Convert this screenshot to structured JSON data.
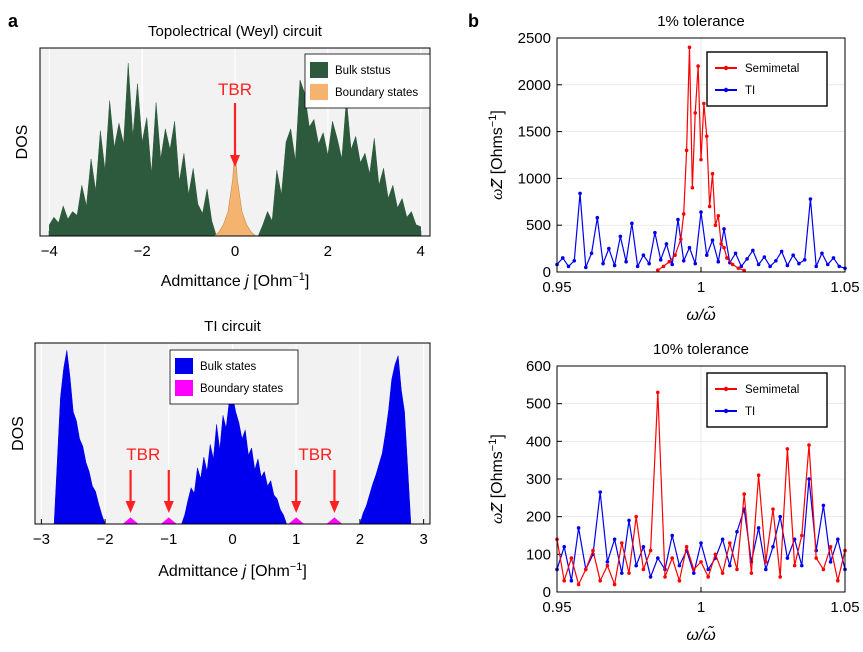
{
  "panel_labels": {
    "a": "a",
    "b": "b"
  },
  "arrow_color": "#ff2020",
  "chart_data": [
    {
      "type": "area",
      "title": "Topolectrical (Weyl) circuit",
      "xlabel_main": "Admittance ",
      "xlabel_var": "j",
      "xlabel_unit_open": " [Ohm",
      "xlabel_unit_exp": "−1",
      "xlabel_unit_close": "]",
      "ylabel": "DOS",
      "xlim": [
        -4.2,
        4.2
      ],
      "ylim": [
        0,
        1
      ],
      "x_ticks": [
        -4,
        -2,
        0,
        2,
        4
      ],
      "x_tick_labels": [
        "−4",
        "−2",
        "0",
        "2",
        "4"
      ],
      "grid": true,
      "legend_position": "top-right",
      "series": [
        {
          "name": "Bulk ststus",
          "color": "#2d5a3d",
          "x": [
            -4.0,
            -3.9,
            -3.8,
            -3.7,
            -3.6,
            -3.5,
            -3.4,
            -3.3,
            -3.2,
            -3.1,
            -3.0,
            -2.9,
            -2.8,
            -2.7,
            -2.6,
            -2.5,
            -2.4,
            -2.3,
            -2.2,
            -2.1,
            -2.0,
            -1.9,
            -1.8,
            -1.7,
            -1.6,
            -1.5,
            -1.4,
            -1.3,
            -1.2,
            -1.1,
            -1.0,
            -0.9,
            -0.8,
            -0.7,
            -0.6,
            -0.5,
            -0.4,
            -0.3,
            -0.2,
            -0.1,
            0.0,
            0.1,
            0.2,
            0.3,
            0.4,
            0.5,
            0.6,
            0.7,
            0.8,
            0.9,
            1.0,
            1.1,
            1.2,
            1.3,
            1.4,
            1.5,
            1.6,
            1.7,
            1.8,
            1.9,
            2.0,
            2.1,
            2.2,
            2.3,
            2.4,
            2.5,
            2.6,
            2.7,
            2.8,
            2.9,
            3.0,
            3.1,
            3.2,
            3.3,
            3.4,
            3.5,
            3.6,
            3.7,
            3.8,
            3.9,
            4.0
          ],
          "values": [
            0.06,
            0.1,
            0.07,
            0.16,
            0.09,
            0.13,
            0.11,
            0.27,
            0.16,
            0.41,
            0.24,
            0.56,
            0.35,
            0.72,
            0.47,
            0.6,
            0.49,
            0.92,
            0.53,
            0.81,
            0.5,
            0.63,
            0.33,
            0.71,
            0.41,
            0.57,
            0.46,
            0.61,
            0.29,
            0.44,
            0.22,
            0.36,
            0.17,
            0.12,
            0.25,
            0.08,
            0.0,
            0.0,
            0.0,
            0.0,
            0.0,
            0.0,
            0.0,
            0.0,
            0.0,
            0.0,
            0.06,
            0.13,
            0.08,
            0.35,
            0.22,
            0.5,
            0.57,
            0.4,
            0.83,
            0.76,
            0.58,
            0.62,
            0.49,
            0.55,
            0.43,
            0.61,
            0.52,
            0.41,
            0.73,
            0.46,
            0.53,
            0.39,
            0.44,
            0.33,
            0.52,
            0.27,
            0.36,
            0.2,
            0.27,
            0.15,
            0.2,
            0.1,
            0.13,
            0.06,
            0.05
          ]
        },
        {
          "name": "Boundary states",
          "color": "#f4b470",
          "x": [
            -0.45,
            -0.35,
            -0.25,
            -0.15,
            -0.05,
            0.0,
            0.05,
            0.15,
            0.25,
            0.35,
            0.45
          ],
          "values": [
            0.0,
            0.02,
            0.06,
            0.13,
            0.3,
            0.47,
            0.3,
            0.13,
            0.06,
            0.02,
            0.0
          ]
        }
      ],
      "annotations": [
        {
          "text": "TBR",
          "x": 0.0
        }
      ]
    },
    {
      "type": "area",
      "title": "TI circuit",
      "xlabel_main": "Admittance ",
      "xlabel_var": "j",
      "xlabel_unit_open": " [Ohm",
      "xlabel_unit_exp": "−1",
      "xlabel_unit_close": "]",
      "ylabel": "DOS",
      "xlim": [
        -3.1,
        3.1
      ],
      "ylim": [
        0,
        1
      ],
      "x_ticks": [
        -3,
        -2,
        -1,
        0,
        1,
        2,
        3
      ],
      "x_tick_labels": [
        "−3",
        "−2",
        "−1",
        "0",
        "1",
        "2",
        "3"
      ],
      "grid": true,
      "legend_position": "top-left",
      "series": [
        {
          "name": "Bulk states",
          "color": "#0000ee",
          "x": [
            -2.8,
            -2.75,
            -2.7,
            -2.65,
            -2.6,
            -2.55,
            -2.5,
            -2.45,
            -2.4,
            -2.35,
            -2.3,
            -2.25,
            -2.2,
            -2.15,
            -2.1,
            -2.05,
            -2.0,
            -1.95,
            -1.9,
            -1.85,
            -1.8,
            -1.75,
            -1.7,
            -1.65,
            -1.6,
            -1.55,
            -1.5,
            -1.45,
            -1.4,
            -1.35,
            -1.3,
            -1.25,
            -1.2,
            -1.15,
            -1.1,
            -1.05,
            -1.0,
            -0.95,
            -0.9,
            -0.85,
            -0.8,
            -0.75,
            -0.7,
            -0.65,
            -0.6,
            -0.55,
            -0.5,
            -0.45,
            -0.4,
            -0.35,
            -0.3,
            -0.25,
            -0.2,
            -0.15,
            -0.1,
            -0.05,
            0.0,
            0.05,
            0.1,
            0.15,
            0.2,
            0.25,
            0.3,
            0.35,
            0.4,
            0.45,
            0.5,
            0.55,
            0.6,
            0.65,
            0.7,
            0.75,
            0.8,
            0.85,
            0.9,
            0.95,
            1.0,
            1.05,
            1.1,
            1.15,
            1.2,
            1.25,
            1.3,
            1.35,
            1.4,
            1.45,
            1.5,
            1.55,
            1.6,
            1.65,
            1.7,
            1.75,
            1.8,
            1.85,
            1.9,
            1.95,
            2.0,
            2.05,
            2.1,
            2.15,
            2.2,
            2.25,
            2.3,
            2.35,
            2.4,
            2.45,
            2.5,
            2.55,
            2.6,
            2.65,
            2.7,
            2.75,
            2.8
          ],
          "values": [
            0.0,
            0.35,
            0.7,
            0.86,
            0.96,
            0.81,
            0.62,
            0.57,
            0.47,
            0.43,
            0.34,
            0.29,
            0.21,
            0.18,
            0.11,
            0.05,
            0.0,
            0.0,
            0.0,
            0.0,
            0.0,
            0.0,
            0.0,
            0.0,
            0.0,
            0.0,
            0.0,
            0.0,
            0.0,
            0.0,
            0.0,
            0.0,
            0.0,
            0.0,
            0.0,
            0.0,
            0.0,
            0.0,
            0.0,
            0.0,
            0.0,
            0.05,
            0.13,
            0.2,
            0.17,
            0.31,
            0.25,
            0.37,
            0.29,
            0.44,
            0.36,
            0.55,
            0.41,
            0.6,
            0.53,
            0.68,
            0.71,
            0.62,
            0.56,
            0.47,
            0.52,
            0.38,
            0.42,
            0.3,
            0.36,
            0.26,
            0.29,
            0.21,
            0.24,
            0.16,
            0.14,
            0.08,
            0.05,
            0.0,
            0.0,
            0.0,
            0.0,
            0.0,
            0.0,
            0.0,
            0.0,
            0.0,
            0.0,
            0.0,
            0.0,
            0.0,
            0.0,
            0.0,
            0.0,
            0.0,
            0.0,
            0.0,
            0.0,
            0.0,
            0.0,
            0.0,
            0.0,
            0.06,
            0.1,
            0.16,
            0.22,
            0.27,
            0.33,
            0.39,
            0.5,
            0.63,
            0.8,
            0.88,
            0.93,
            0.74,
            0.62,
            0.31,
            0.0
          ]
        },
        {
          "name": "Boundary states",
          "color": "#ff00ff",
          "peaks_x": [
            -1.6,
            -1.0,
            1.0,
            1.6
          ],
          "peak_height": 0.035,
          "peak_halfwidth": 0.12
        }
      ],
      "annotations": [
        {
          "text": "TBR",
          "x": -1.6,
          "arrow": true
        },
        {
          "text": "",
          "x": -1.0,
          "arrow": true
        },
        {
          "text": "TBR",
          "x": 1.0,
          "arrow": true
        },
        {
          "text": "",
          "x": 1.6,
          "arrow": true
        }
      ],
      "annotation_label_positions": [
        -1.4,
        1.3
      ]
    },
    {
      "type": "line",
      "title": "1% tolerance",
      "xlabel": "ω/ω̃",
      "ylabel_tilde": "ω̃",
      "ylabel_var": "Z",
      "ylabel_unit_open": " [Ohms",
      "ylabel_unit_exp": "−1",
      "ylabel_unit_close": "]",
      "xlim": [
        0.95,
        1.05
      ],
      "ylim": [
        0,
        2500
      ],
      "x_ticks": [
        0.95,
        1.0,
        1.05
      ],
      "x_tick_labels": [
        "0.95",
        "1",
        "1.05"
      ],
      "y_ticks": [
        0,
        500,
        1000,
        1500,
        2000,
        2500
      ],
      "y_tick_labels": [
        "0",
        "500",
        "1000",
        "1500",
        "2000",
        "2500"
      ],
      "grid": true,
      "legend_position": "top-right",
      "series": [
        {
          "name": "Semimetal",
          "color": "#ff0000",
          "x": [
            0.985,
            0.987,
            0.989,
            0.991,
            0.993,
            0.994,
            0.995,
            0.996,
            0.997,
            0.998,
            0.999,
            1.0,
            1.001,
            1.002,
            1.003,
            1.004,
            1.005,
            1.006,
            1.007,
            1.008,
            1.009,
            1.011,
            1.013,
            1.015
          ],
          "values": [
            20,
            60,
            110,
            180,
            350,
            620,
            1300,
            2400,
            900,
            1700,
            2200,
            1200,
            1800,
            1450,
            700,
            1050,
            500,
            600,
            300,
            260,
            150,
            80,
            40,
            15
          ]
        },
        {
          "name": "TI",
          "color": "#0000ee",
          "x": [
            0.95,
            0.952,
            0.954,
            0.956,
            0.958,
            0.96,
            0.962,
            0.964,
            0.966,
            0.968,
            0.97,
            0.972,
            0.974,
            0.976,
            0.978,
            0.98,
            0.982,
            0.984,
            0.986,
            0.988,
            0.99,
            0.992,
            0.994,
            0.996,
            0.998,
            1.0,
            1.002,
            1.004,
            1.006,
            1.008,
            1.01,
            1.012,
            1.014,
            1.016,
            1.018,
            1.02,
            1.022,
            1.024,
            1.026,
            1.028,
            1.03,
            1.032,
            1.034,
            1.036,
            1.038,
            1.04,
            1.042,
            1.044,
            1.046,
            1.048,
            1.05
          ],
          "values": [
            80,
            150,
            60,
            120,
            840,
            50,
            200,
            580,
            90,
            250,
            70,
            380,
            110,
            520,
            60,
            180,
            90,
            420,
            130,
            300,
            80,
            560,
            120,
            260,
            90,
            640,
            180,
            340,
            110,
            460,
            100,
            200,
            60,
            140,
            230,
            80,
            160,
            60,
            120,
            220,
            70,
            180,
            90,
            130,
            780,
            60,
            200,
            80,
            150,
            60,
            40
          ]
        }
      ]
    },
    {
      "type": "line",
      "title": "10% tolerance",
      "xlabel": "ω/ω̃",
      "ylabel_tilde": "ω̃",
      "ylabel_var": "Z",
      "ylabel_unit_open": " [Ohms",
      "ylabel_unit_exp": "−1",
      "ylabel_unit_close": "]",
      "xlim": [
        0.95,
        1.05
      ],
      "ylim": [
        0,
        600
      ],
      "x_ticks": [
        0.95,
        1.0,
        1.05
      ],
      "x_tick_labels": [
        "0.95",
        "1",
        "1.05"
      ],
      "y_ticks": [
        0,
        100,
        200,
        300,
        400,
        500,
        600
      ],
      "y_tick_labels": [
        "0",
        "100",
        "200",
        "300",
        "400",
        "500",
        "600"
      ],
      "grid": true,
      "legend_position": "top-right",
      "series": [
        {
          "name": "Semimetal",
          "color": "#ff0000",
          "x": [
            0.95,
            0.9525,
            0.955,
            0.9575,
            0.96,
            0.9625,
            0.965,
            0.9675,
            0.97,
            0.9725,
            0.975,
            0.9775,
            0.98,
            0.9825,
            0.985,
            0.9875,
            0.99,
            0.9925,
            0.995,
            0.9975,
            1.0,
            1.0025,
            1.005,
            1.0075,
            1.01,
            1.0125,
            1.015,
            1.0175,
            1.02,
            1.0225,
            1.025,
            1.0275,
            1.03,
            1.0325,
            1.035,
            1.0375,
            1.04,
            1.0425,
            1.045,
            1.0475,
            1.05
          ],
          "values": [
            140,
            30,
            90,
            20,
            60,
            110,
            30,
            70,
            20,
            130,
            50,
            200,
            60,
            110,
            530,
            40,
            90,
            30,
            120,
            60,
            80,
            40,
            100,
            50,
            130,
            60,
            260,
            50,
            310,
            80,
            220,
            40,
            380,
            70,
            150,
            390,
            90,
            60,
            120,
            30,
            110
          ]
        },
        {
          "name": "TI",
          "color": "#0000ee",
          "x": [
            0.95,
            0.9525,
            0.955,
            0.9575,
            0.96,
            0.9625,
            0.965,
            0.9675,
            0.97,
            0.9725,
            0.975,
            0.9775,
            0.98,
            0.9825,
            0.985,
            0.9875,
            0.99,
            0.9925,
            0.995,
            0.9975,
            1.0,
            1.0025,
            1.005,
            1.0075,
            1.01,
            1.0125,
            1.015,
            1.0175,
            1.02,
            1.0225,
            1.025,
            1.0275,
            1.03,
            1.0325,
            1.035,
            1.0375,
            1.04,
            1.0425,
            1.045,
            1.0475,
            1.05
          ],
          "values": [
            60,
            120,
            30,
            170,
            60,
            100,
            265,
            80,
            140,
            50,
            190,
            70,
            120,
            40,
            90,
            60,
            150,
            70,
            110,
            50,
            130,
            60,
            90,
            140,
            70,
            160,
            220,
            80,
            170,
            60,
            120,
            200,
            90,
            140,
            70,
            300,
            110,
            230,
            80,
            140,
            60
          ]
        }
      ]
    }
  ]
}
